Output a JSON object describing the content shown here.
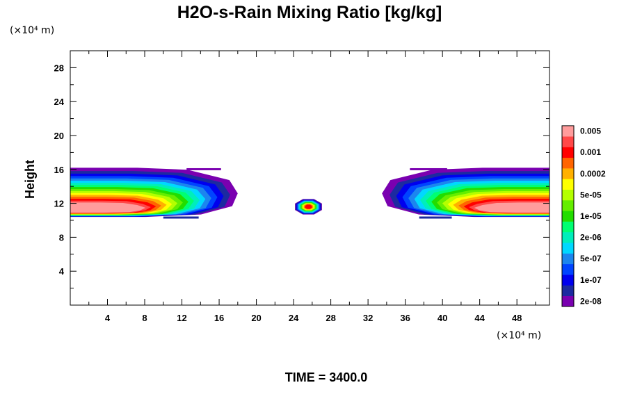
{
  "chart_data": {
    "type": "heatmap",
    "title": "H2O-s-Rain Mixing Ratio [kg/kg]",
    "ylabel": "Height",
    "x_unit": "(×10⁴ m)",
    "y_unit": "(×10⁴ m)",
    "xlim": [
      0,
      51.5
    ],
    "ylim": [
      0,
      30
    ],
    "x_ticks": [
      "4",
      "8",
      "12",
      "16",
      "20",
      "24",
      "28",
      "32",
      "36",
      "40",
      "44",
      "48"
    ],
    "y_ticks": [
      "4",
      "8",
      "12",
      "16",
      "20",
      "24",
      "28"
    ],
    "time_label": "TIME = 3400.0",
    "colorbar": {
      "colors": [
        "#7a00b0",
        "#1c2aa0",
        "#0000ee",
        "#0044ff",
        "#1c86ee",
        "#00d8ff",
        "#00eebb",
        "#00ff72",
        "#22dd00",
        "#64ee00",
        "#b4ff00",
        "#ffff00",
        "#ffb000",
        "#ff6400",
        "#ff0000",
        "#ff4848",
        "#ff9c9c"
      ],
      "labels": [
        "2e-08",
        "1e-07",
        "5e-07",
        "2e-06",
        "1e-05",
        "5e-05",
        "0.0002",
        "0.001",
        "0.005"
      ]
    },
    "regions": [
      {
        "name": "left-cloud-band",
        "x_range": [
          0,
          18
        ],
        "y_range": [
          10.4,
          16.2
        ]
      },
      {
        "name": "center-cell",
        "x": 25.6,
        "y": 11.6
      },
      {
        "name": "right-cloud-band",
        "x_range": [
          33.5,
          51.5
        ],
        "y_range": [
          10.4,
          16.2
        ]
      }
    ]
  }
}
